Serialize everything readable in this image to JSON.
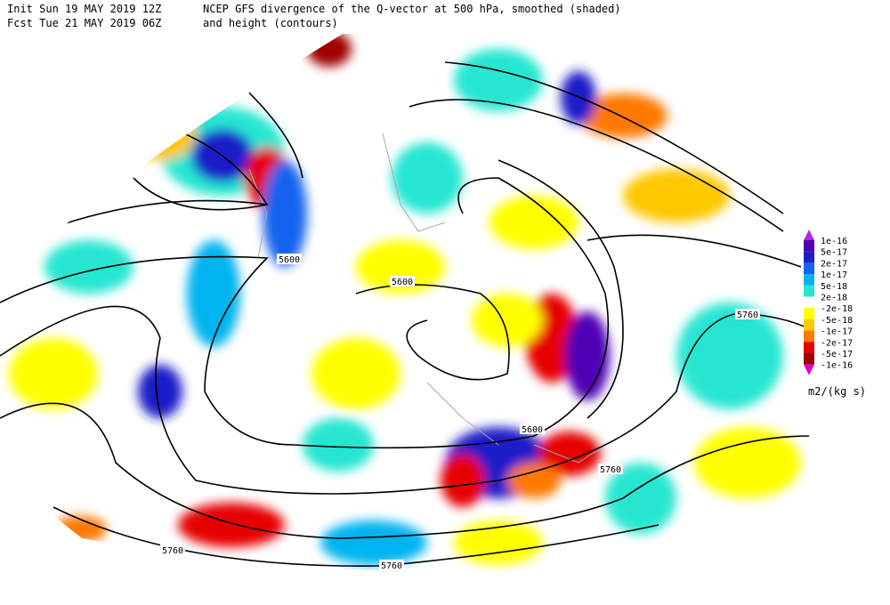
{
  "header": {
    "init": "Init  Sun 19 MAY 2019 12Z",
    "fcst": "Fcst Tue 21 MAY 2019 06Z",
    "title_line1": "NCEP GFS divergence of the Q-vector at 500 hPa, smoothed (shaded)",
    "title_line2": "and height (contours)"
  },
  "contour_labels": [
    "5600",
    "5600",
    "5600",
    "5760",
    "5760",
    "5760",
    "5760"
  ],
  "colorbar": {
    "labels": [
      "1e-16",
      "5e-17",
      "2e-17",
      "1e-17",
      "5e-18",
      "2e-18",
      "-2e-18",
      "-5e-18",
      "-1e-17",
      "-2e-17",
      "-5e-17",
      "-1e-16"
    ],
    "colors": [
      "#b428dc",
      "#5000b4",
      "#1e1ec8",
      "#1464f0",
      "#00b4f0",
      "#28e6d2",
      "#ffffff",
      "#ffff00",
      "#ffc800",
      "#ff7800",
      "#e60000",
      "#a00000",
      "#dc00c8"
    ],
    "unit": "m2/(kg s)"
  }
}
